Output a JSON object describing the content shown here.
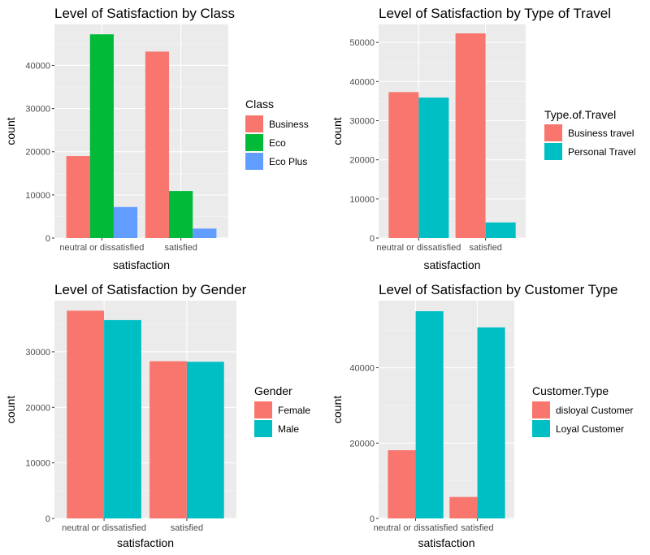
{
  "chart_data": [
    {
      "type": "bar",
      "title": "Level of Satisfaction by Class",
      "xlabel": "satisfaction",
      "ylabel": "count",
      "categories": [
        "neutral or dissatisfied",
        "satisfied"
      ],
      "ylim": [
        0,
        49500
      ],
      "yticks": [
        0,
        10000,
        20000,
        30000,
        40000
      ],
      "ytick_labels": [
        "0",
        "10000",
        "20000",
        "30000",
        "40000"
      ],
      "legend_title": "Class",
      "series": [
        {
          "name": "Business",
          "color": "#F8766D",
          "values": [
            19000,
            43200
          ]
        },
        {
          "name": "Eco",
          "color": "#00BA38",
          "values": [
            47200,
            10900
          ]
        },
        {
          "name": "Eco Plus",
          "color": "#619CFF",
          "values": [
            7200,
            2200
          ]
        }
      ]
    },
    {
      "type": "bar",
      "title": "Level of Satisfaction by Type of Travel",
      "xlabel": "satisfaction",
      "ylabel": "count",
      "categories": [
        "neutral or dissatisfied",
        "satisfied"
      ],
      "ylim": [
        0,
        54600
      ],
      "yticks": [
        0,
        10000,
        20000,
        30000,
        40000,
        50000
      ],
      "ytick_labels": [
        "0",
        "10000",
        "20000",
        "30000",
        "40000",
        "50000"
      ],
      "legend_title": "Type.of.Travel",
      "series": [
        {
          "name": "Business travel",
          "color": "#F8766D",
          "values": [
            37300,
            52300
          ]
        },
        {
          "name": "Personal Travel",
          "color": "#00BFC4",
          "values": [
            35900,
            4000
          ]
        }
      ]
    },
    {
      "type": "bar",
      "title": "Level of Satisfaction by Gender",
      "xlabel": "satisfaction",
      "ylabel": "count",
      "categories": [
        "neutral or dissatisfied",
        "satisfied"
      ],
      "ylim": [
        0,
        39200
      ],
      "yticks": [
        0,
        10000,
        20000,
        30000
      ],
      "ytick_labels": [
        "0",
        "10000",
        "20000",
        "30000"
      ],
      "legend_title": "Gender",
      "series": [
        {
          "name": "Female",
          "color": "#F8766D",
          "values": [
            37400,
            28300
          ]
        },
        {
          "name": "Male",
          "color": "#00BFC4",
          "values": [
            35700,
            28200
          ]
        }
      ]
    },
    {
      "type": "bar",
      "title": "Level of Satisfaction by Customer Type",
      "xlabel": "satisfaction",
      "ylabel": "count",
      "categories": [
        "neutral or dissatisfied",
        "satisfied"
      ],
      "ylim": [
        0,
        57800
      ],
      "yticks": [
        0,
        20000,
        40000
      ],
      "ytick_labels": [
        "0",
        "20000",
        "40000"
      ],
      "legend_title": "Customer.Type",
      "series": [
        {
          "name": "disloyal Customer",
          "color": "#F8766D",
          "values": [
            18100,
            5700
          ]
        },
        {
          "name": "Loyal Customer",
          "color": "#00BFC4",
          "values": [
            55000,
            50700
          ]
        }
      ]
    }
  ]
}
